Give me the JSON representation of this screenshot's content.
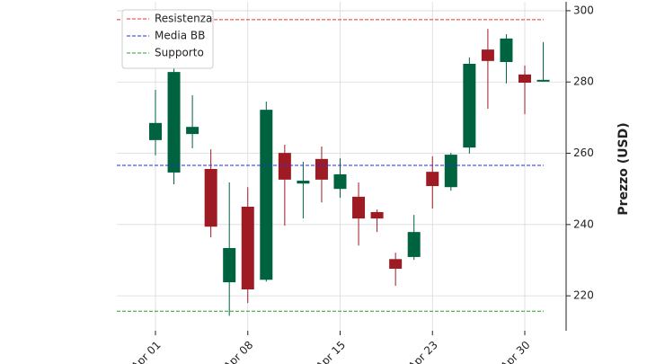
{
  "chart_data": {
    "type": "candlestick",
    "categories": [
      "Apr 01",
      null,
      null,
      null,
      null,
      "Apr 08",
      null,
      null,
      null,
      null,
      "Apr 15",
      null,
      null,
      null,
      null,
      "Apr 23",
      null,
      null,
      null,
      null,
      "Apr 30",
      null
    ],
    "open": [
      263.7,
      254.6,
      265.4,
      255.6,
      223.8,
      245.0,
      224.5,
      260.1,
      251.5,
      258.4,
      250.0,
      247.8,
      243.5,
      230.3,
      230.9,
      254.8,
      250.5,
      261.6,
      289.1,
      285.6,
      282.1,
      280.1
    ],
    "high": [
      277.8,
      284.9,
      276.3,
      261.1,
      251.8,
      250.5,
      274.5,
      262.4,
      257.6,
      261.9,
      258.6,
      251.8,
      244.2,
      232.1,
      242.7,
      259.1,
      260.1,
      286.9,
      294.9,
      293.4,
      284.6,
      291.2
    ],
    "low": [
      259.4,
      251.3,
      261.4,
      236.4,
      214.4,
      218.0,
      224.0,
      239.7,
      241.7,
      246.2,
      247.5,
      234.1,
      237.9,
      222.8,
      230.1,
      244.5,
      249.5,
      259.9,
      272.5,
      279.6,
      271.0,
      280.1
    ],
    "close": [
      268.5,
      282.8,
      267.4,
      239.4,
      233.4,
      221.8,
      272.2,
      252.6,
      252.3,
      252.6,
      254.1,
      241.7,
      241.7,
      227.6,
      237.9,
      250.8,
      259.6,
      285.1,
      285.9,
      292.2,
      279.8,
      280.6
    ],
    "up_color": "#006340",
    "down_color": "#9e1b24",
    "hlines": [
      {
        "name": "Resistenza",
        "value": 297.5,
        "color": "#e8332f"
      },
      {
        "name": "Media BB",
        "value": 256.6,
        "color": "#2a2ae0"
      },
      {
        "name": "Supporto",
        "value": 215.7,
        "color": "#2e9a2e"
      }
    ],
    "ylabel": "Prezzo (USD)",
    "ylim": [
      210.2,
      302.5
    ],
    "yticks": [
      220,
      240,
      260,
      280,
      300
    ],
    "grid": true,
    "legend": "upper left"
  }
}
